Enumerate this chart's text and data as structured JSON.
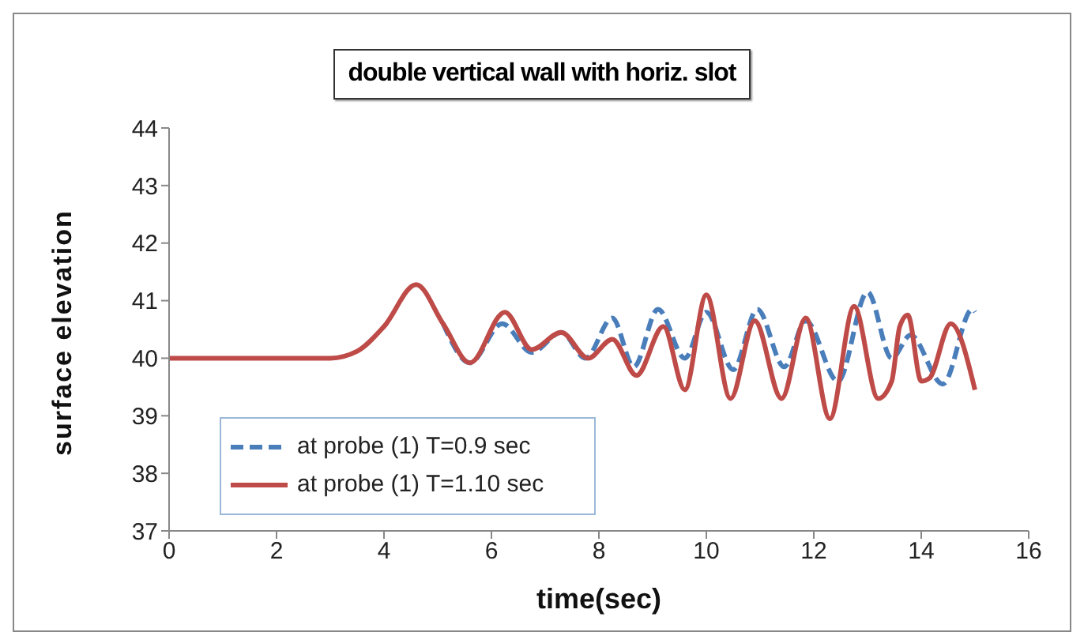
{
  "chart_data": {
    "type": "line",
    "title": "double vertical wall with horiz. slot",
    "xlabel": "time(sec)",
    "ylabel": "surface elevation",
    "xlim": [
      0,
      16
    ],
    "xticks": [
      0,
      2,
      4,
      6,
      8,
      10,
      12,
      14,
      16
    ],
    "ylim": [
      37,
      44
    ],
    "yticks": [
      37,
      38,
      39,
      40,
      41,
      42,
      43,
      44
    ],
    "grid": false,
    "legend": "bottom left",
    "marker": "none",
    "series": [
      {
        "name": "at probe (1) T=0.9 sec",
        "color": "#4a7ebb",
        "line_style": "dashed",
        "x": [
          5.1,
          5.6,
          6.2,
          6.75,
          7.3,
          7.75,
          8.25,
          8.65,
          9.1,
          9.6,
          10.0,
          10.5,
          10.95,
          11.45,
          11.85,
          12.45,
          13.0,
          13.45,
          13.8,
          14.4,
          14.95,
          15
        ],
        "values": [
          40.6,
          39.92,
          40.6,
          40.1,
          40.45,
          40.0,
          40.7,
          39.85,
          40.85,
          40.0,
          40.8,
          39.8,
          40.85,
          39.85,
          40.65,
          39.6,
          41.15,
          40.0,
          40.4,
          39.55,
          40.85,
          40.8
        ]
      },
      {
        "name": "at probe (1) T=1.10 sec",
        "color": "#be4b48",
        "line_style": "solid",
        "x": [
          0,
          1,
          2,
          3,
          3.5,
          4,
          4.6,
          5.1,
          5.6,
          6.25,
          6.75,
          7.3,
          7.8,
          8.25,
          8.7,
          9.2,
          9.6,
          10.0,
          10.45,
          10.9,
          11.4,
          11.85,
          12.3,
          12.75,
          13.2,
          13.45,
          13.6,
          13.75,
          14.0,
          14.15,
          14.55,
          15
        ],
        "values": [
          40,
          40,
          40,
          40,
          40.12,
          40.55,
          41.28,
          40.6,
          39.92,
          40.8,
          40.15,
          40.45,
          40.0,
          40.33,
          39.7,
          40.55,
          39.45,
          41.1,
          39.3,
          40.65,
          39.3,
          40.7,
          38.95,
          40.9,
          39.3,
          39.6,
          40.55,
          40.75,
          39.6,
          39.65,
          40.6,
          39.45
        ]
      }
    ]
  }
}
